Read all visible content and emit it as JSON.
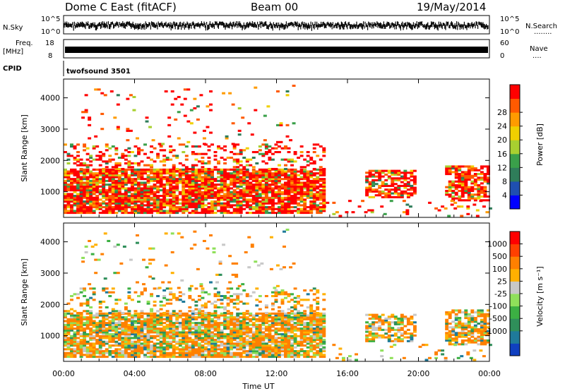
{
  "header": {
    "title": "Dome C East (fitACF)",
    "beam": "Beam 00",
    "date": "19/May/2014"
  },
  "panels": {
    "nsky": {
      "label": "N.Sky",
      "left_ticks": [
        "10^5",
        "10^0"
      ],
      "right_ticks": [
        "10^5",
        "10^0"
      ],
      "right_label": "N.Search",
      "right_marker": "........"
    },
    "freq": {
      "label_line1": "Freq.",
      "label_line2": "[MHz]",
      "left_ticks": [
        "18",
        "8"
      ],
      "right_ticks": [
        "60",
        "0"
      ],
      "right_label": "Nave",
      "right_marker": "...."
    },
    "cpid": {
      "label": "CPID",
      "value": "twofsound 3501"
    }
  },
  "chart_data": [
    {
      "type": "heatmap",
      "name": "power",
      "ylabel": "Slant Range [km]",
      "yticks": [
        "1000",
        "2000",
        "3000",
        "4000"
      ],
      "colorbar": {
        "label": "Power [dB]",
        "ticks": [
          "4",
          "8",
          "12",
          "16",
          "20",
          "24",
          "28"
        ],
        "colors": [
          "#0000ff",
          "#1f4fb0",
          "#2f7d5a",
          "#3aa04a",
          "#a8d030",
          "#f0d000",
          "#ff9b00",
          "#ff5a00",
          "#ff0000"
        ]
      }
    },
    {
      "type": "heatmap",
      "name": "velocity",
      "ylabel": "Slant Range [km]",
      "yticks": [
        "1000",
        "2000",
        "3000",
        "4000"
      ],
      "colorbar": {
        "label": "Velocity [m s⁻¹]",
        "ticks": [
          "1000",
          "500",
          "100",
          "25",
          "-25",
          "-100",
          "-500",
          "-1000"
        ],
        "colors": [
          "#1040c0",
          "#1f7a9a",
          "#2f8f5a",
          "#3cb043",
          "#8fe05a",
          "#c8c8c8",
          "#ffb000",
          "#ff8000",
          "#ff4000",
          "#ff0000"
        ]
      }
    }
  ],
  "xaxis": {
    "label": "Time UT",
    "ticks": [
      "00:00",
      "04:00",
      "08:00",
      "12:00",
      "16:00",
      "20:00",
      "00:00"
    ]
  }
}
